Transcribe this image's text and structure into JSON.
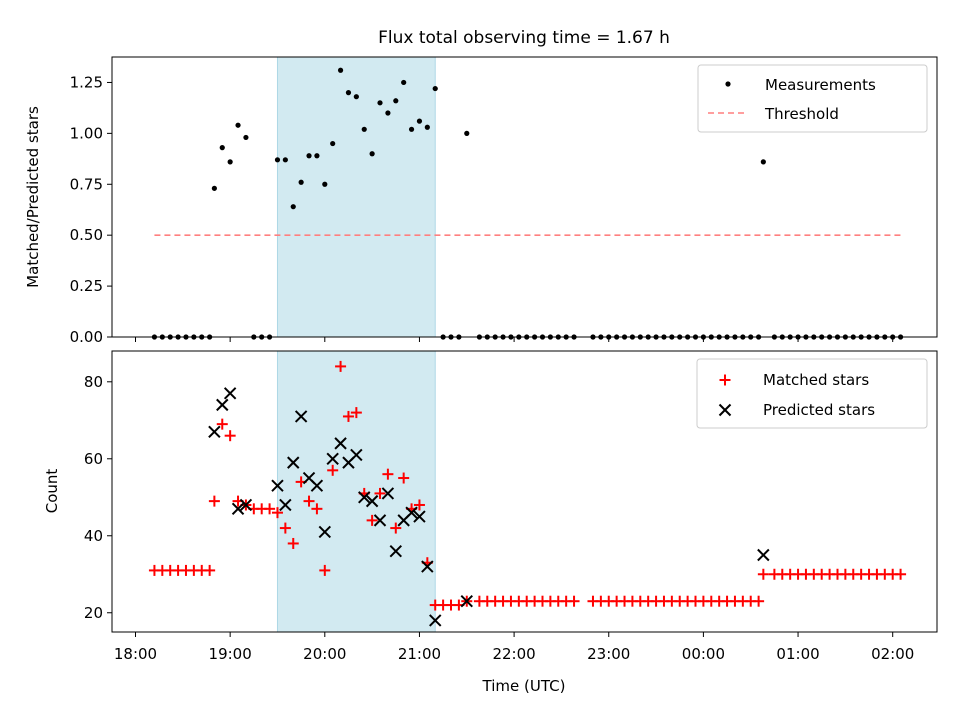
{
  "title": "Flux total observing time = 1.67 h",
  "colors": {
    "shade": "#add8e6",
    "measure": "#000000",
    "threshold": "#ff7f7f",
    "matched": "#ff0000",
    "predicted": "#000000"
  },
  "chart_data": [
    {
      "type": "scatter",
      "ylabel": "Matched/Predicted stars",
      "ylim": [
        0.0,
        1.375
      ],
      "yticks": [
        "0.00",
        "0.25",
        "0.50",
        "0.75",
        "1.00",
        "1.25"
      ],
      "legend_position": "top-right",
      "shaded_span": {
        "from": "19:30",
        "to": "21:10"
      },
      "threshold": {
        "name": "Threshold",
        "y": 0.5,
        "from": "18:12",
        "to": "02:05"
      },
      "measurements": {
        "name": "Measurements",
        "points": [
          [
            "18:12",
            0
          ],
          [
            "18:17",
            0
          ],
          [
            "18:22",
            0
          ],
          [
            "18:27",
            0
          ],
          [
            "18:32",
            0
          ],
          [
            "18:37",
            0
          ],
          [
            "18:42",
            0
          ],
          [
            "18:47",
            0
          ],
          [
            "18:50",
            0.73
          ],
          [
            "18:55",
            0.93
          ],
          [
            "19:00",
            0.86
          ],
          [
            "19:05",
            1.04
          ],
          [
            "19:10",
            0.98
          ],
          [
            "19:15",
            0
          ],
          [
            "19:20",
            0
          ],
          [
            "19:25",
            0
          ],
          [
            "19:30",
            0.87
          ],
          [
            "19:35",
            0.87
          ],
          [
            "19:40",
            0.64
          ],
          [
            "19:45",
            0.76
          ],
          [
            "19:50",
            0.89
          ],
          [
            "19:55",
            0.89
          ],
          [
            "20:00",
            0.75
          ],
          [
            "20:05",
            0.95
          ],
          [
            "20:10",
            1.31
          ],
          [
            "20:15",
            1.2
          ],
          [
            "20:20",
            1.18
          ],
          [
            "20:25",
            1.02
          ],
          [
            "20:30",
            0.9
          ],
          [
            "20:35",
            1.15
          ],
          [
            "20:40",
            1.1
          ],
          [
            "20:45",
            1.16
          ],
          [
            "20:50",
            1.25
          ],
          [
            "20:55",
            1.02
          ],
          [
            "21:00",
            1.06
          ],
          [
            "21:05",
            1.03
          ],
          [
            "21:10",
            1.22
          ],
          [
            "21:15",
            0
          ],
          [
            "21:20",
            0
          ],
          [
            "21:25",
            0
          ],
          [
            "21:30",
            1.0
          ],
          [
            "21:38",
            0
          ],
          [
            "21:43",
            0
          ],
          [
            "21:48",
            0
          ],
          [
            "21:53",
            0
          ],
          [
            "21:58",
            0
          ],
          [
            "22:03",
            0
          ],
          [
            "22:08",
            0
          ],
          [
            "22:13",
            0
          ],
          [
            "22:18",
            0
          ],
          [
            "22:23",
            0
          ],
          [
            "22:28",
            0
          ],
          [
            "22:33",
            0
          ],
          [
            "22:38",
            0
          ],
          [
            "22:50",
            0
          ],
          [
            "22:55",
            0
          ],
          [
            "23:00",
            0
          ],
          [
            "23:05",
            0
          ],
          [
            "23:10",
            0
          ],
          [
            "23:15",
            0
          ],
          [
            "23:20",
            0
          ],
          [
            "23:25",
            0
          ],
          [
            "23:30",
            0
          ],
          [
            "23:35",
            0
          ],
          [
            "23:40",
            0
          ],
          [
            "23:45",
            0
          ],
          [
            "23:50",
            0
          ],
          [
            "23:55",
            0
          ],
          [
            "00:00",
            0
          ],
          [
            "00:05",
            0
          ],
          [
            "00:10",
            0
          ],
          [
            "00:15",
            0
          ],
          [
            "00:20",
            0
          ],
          [
            "00:25",
            0
          ],
          [
            "00:30",
            0
          ],
          [
            "00:35",
            0
          ],
          [
            "00:38",
            0.86
          ],
          [
            "00:45",
            0
          ],
          [
            "00:50",
            0
          ],
          [
            "00:55",
            0
          ],
          [
            "01:00",
            0
          ],
          [
            "01:05",
            0
          ],
          [
            "01:10",
            0
          ],
          [
            "01:15",
            0
          ],
          [
            "01:20",
            0
          ],
          [
            "01:25",
            0
          ],
          [
            "01:30",
            0
          ],
          [
            "01:35",
            0
          ],
          [
            "01:40",
            0
          ],
          [
            "01:45",
            0
          ],
          [
            "01:50",
            0
          ],
          [
            "01:55",
            0
          ],
          [
            "02:00",
            0
          ],
          [
            "02:05",
            0
          ]
        ]
      }
    },
    {
      "type": "scatter",
      "xlabel": "Time (UTC)",
      "ylabel": "Count",
      "ylim": [
        15,
        88
      ],
      "yticks": [
        "20",
        "40",
        "60",
        "80"
      ],
      "xticks": [
        "18:00",
        "19:00",
        "20:00",
        "21:00",
        "22:00",
        "23:00",
        "00:00",
        "01:00",
        "02:00"
      ],
      "legend_position": "top-right",
      "shaded_span": {
        "from": "19:30",
        "to": "21:10"
      },
      "matched": {
        "name": "Matched stars",
        "points": [
          [
            "18:12",
            31
          ],
          [
            "18:17",
            31
          ],
          [
            "18:22",
            31
          ],
          [
            "18:27",
            31
          ],
          [
            "18:32",
            31
          ],
          [
            "18:37",
            31
          ],
          [
            "18:42",
            31
          ],
          [
            "18:47",
            31
          ],
          [
            "18:50",
            49
          ],
          [
            "18:55",
            69
          ],
          [
            "19:00",
            66
          ],
          [
            "19:05",
            49
          ],
          [
            "19:10",
            48
          ],
          [
            "19:15",
            47
          ],
          [
            "19:20",
            47
          ],
          [
            "19:25",
            47
          ],
          [
            "19:30",
            46
          ],
          [
            "19:35",
            42
          ],
          [
            "19:40",
            38
          ],
          [
            "19:45",
            54
          ],
          [
            "19:50",
            49
          ],
          [
            "19:55",
            47
          ],
          [
            "20:00",
            31
          ],
          [
            "20:05",
            57
          ],
          [
            "20:10",
            84
          ],
          [
            "20:15",
            71
          ],
          [
            "20:20",
            72
          ],
          [
            "20:25",
            51
          ],
          [
            "20:30",
            44
          ],
          [
            "20:35",
            51
          ],
          [
            "20:40",
            56
          ],
          [
            "20:45",
            42
          ],
          [
            "20:50",
            55
          ],
          [
            "20:55",
            47
          ],
          [
            "21:00",
            48
          ],
          [
            "21:05",
            33
          ],
          [
            "21:10",
            22
          ],
          [
            "21:15",
            22
          ],
          [
            "21:20",
            22
          ],
          [
            "21:25",
            22
          ],
          [
            "21:30",
            23
          ],
          [
            "21:38",
            23
          ],
          [
            "21:43",
            23
          ],
          [
            "21:48",
            23
          ],
          [
            "21:53",
            23
          ],
          [
            "21:58",
            23
          ],
          [
            "22:03",
            23
          ],
          [
            "22:08",
            23
          ],
          [
            "22:13",
            23
          ],
          [
            "22:18",
            23
          ],
          [
            "22:23",
            23
          ],
          [
            "22:28",
            23
          ],
          [
            "22:33",
            23
          ],
          [
            "22:38",
            23
          ],
          [
            "22:50",
            23
          ],
          [
            "22:55",
            23
          ],
          [
            "23:00",
            23
          ],
          [
            "23:05",
            23
          ],
          [
            "23:10",
            23
          ],
          [
            "23:15",
            23
          ],
          [
            "23:20",
            23
          ],
          [
            "23:25",
            23
          ],
          [
            "23:30",
            23
          ],
          [
            "23:35",
            23
          ],
          [
            "23:40",
            23
          ],
          [
            "23:45",
            23
          ],
          [
            "23:50",
            23
          ],
          [
            "23:55",
            23
          ],
          [
            "00:00",
            23
          ],
          [
            "00:05",
            23
          ],
          [
            "00:10",
            23
          ],
          [
            "00:15",
            23
          ],
          [
            "00:20",
            23
          ],
          [
            "00:25",
            23
          ],
          [
            "00:30",
            23
          ],
          [
            "00:35",
            23
          ],
          [
            "00:38",
            30
          ],
          [
            "00:45",
            30
          ],
          [
            "00:50",
            30
          ],
          [
            "00:55",
            30
          ],
          [
            "01:00",
            30
          ],
          [
            "01:05",
            30
          ],
          [
            "01:10",
            30
          ],
          [
            "01:15",
            30
          ],
          [
            "01:20",
            30
          ],
          [
            "01:25",
            30
          ],
          [
            "01:30",
            30
          ],
          [
            "01:35",
            30
          ],
          [
            "01:40",
            30
          ],
          [
            "01:45",
            30
          ],
          [
            "01:50",
            30
          ],
          [
            "01:55",
            30
          ],
          [
            "02:00",
            30
          ],
          [
            "02:05",
            30
          ]
        ]
      },
      "predicted": {
        "name": "Predicted stars",
        "points": [
          [
            "18:50",
            67
          ],
          [
            "18:55",
            74
          ],
          [
            "19:00",
            77
          ],
          [
            "19:05",
            47
          ],
          [
            "19:10",
            48
          ],
          [
            "19:30",
            53
          ],
          [
            "19:35",
            48
          ],
          [
            "19:40",
            59
          ],
          [
            "19:45",
            71
          ],
          [
            "19:50",
            55
          ],
          [
            "19:55",
            53
          ],
          [
            "20:00",
            41
          ],
          [
            "20:05",
            60
          ],
          [
            "20:10",
            64
          ],
          [
            "20:15",
            59
          ],
          [
            "20:20",
            61
          ],
          [
            "20:25",
            50
          ],
          [
            "20:30",
            49
          ],
          [
            "20:35",
            44
          ],
          [
            "20:40",
            51
          ],
          [
            "20:45",
            36
          ],
          [
            "20:50",
            44
          ],
          [
            "20:55",
            46
          ],
          [
            "21:00",
            45
          ],
          [
            "21:05",
            32
          ],
          [
            "21:10",
            18
          ],
          [
            "21:30",
            23
          ],
          [
            "00:38",
            35
          ]
        ]
      }
    }
  ]
}
